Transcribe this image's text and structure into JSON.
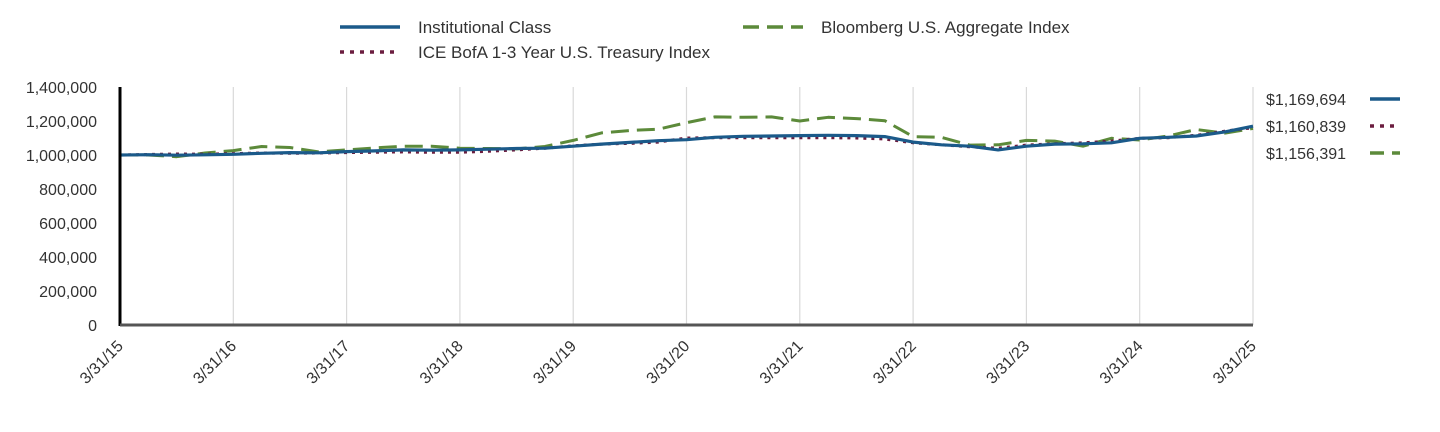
{
  "chart_data": {
    "type": "line",
    "title": "",
    "xlabel": "",
    "ylabel": "",
    "ylim": [
      0,
      1400000
    ],
    "y_ticks": [
      0,
      200000,
      400000,
      600000,
      800000,
      1000000,
      1200000,
      1400000
    ],
    "y_tick_labels": [
      "0",
      "200,000",
      "400,000",
      "600,000",
      "800,000",
      "1,000,000",
      "1,200,000",
      "1,400,000"
    ],
    "x_tick_labels": [
      "3/31/15",
      "3/31/16",
      "3/31/17",
      "3/31/18",
      "3/31/19",
      "3/31/20",
      "3/31/21",
      "3/31/22",
      "3/31/23",
      "3/31/24",
      "3/31/25"
    ],
    "x_range": [
      2015.25,
      2025.25
    ],
    "grid": "vertical",
    "legend_position": "top",
    "x": [
      2015.25,
      2015.5,
      2015.75,
      2016.0,
      2016.25,
      2016.5,
      2016.75,
      2017.0,
      2017.25,
      2017.5,
      2017.75,
      2018.0,
      2018.25,
      2018.5,
      2018.75,
      2019.0,
      2019.25,
      2019.5,
      2019.75,
      2020.0,
      2020.25,
      2020.5,
      2020.75,
      2021.0,
      2021.25,
      2021.5,
      2021.75,
      2022.0,
      2022.25,
      2022.5,
      2022.75,
      2023.0,
      2023.25,
      2023.5,
      2023.75,
      2024.0,
      2024.25,
      2024.5,
      2024.75,
      2025.0,
      2025.25
    ],
    "series": [
      {
        "name": "Institutional Class",
        "color": "#1b5a8a",
        "style": "solid",
        "end_label": "$1,169,694",
        "values": [
          1000000,
          1002000,
          999000,
          1001000,
          1004000,
          1010000,
          1014000,
          1013000,
          1020000,
          1024000,
          1030000,
          1028000,
          1030000,
          1034000,
          1038000,
          1040000,
          1052000,
          1064000,
          1074000,
          1084000,
          1090000,
          1104000,
          1110000,
          1112000,
          1114000,
          1116000,
          1114000,
          1108000,
          1076000,
          1060000,
          1052000,
          1030000,
          1052000,
          1064000,
          1066000,
          1072000,
          1098000,
          1104000,
          1112000,
          1136000,
          1169694
        ]
      },
      {
        "name": "ICE BofA 1-3 Year U.S. Treasury Index",
        "color": "#6b1d3f",
        "style": "dotted",
        "end_label": "$1,160,839",
        "values": [
          1000000,
          1003000,
          1006000,
          1005000,
          1008000,
          1012000,
          1010000,
          1012000,
          1014000,
          1016000,
          1018000,
          1016000,
          1016000,
          1022000,
          1030000,
          1040000,
          1054000,
          1064000,
          1068000,
          1076000,
          1100000,
          1102000,
          1102000,
          1102000,
          1102000,
          1102000,
          1100000,
          1094000,
          1072000,
          1060000,
          1048000,
          1040000,
          1058000,
          1066000,
          1072000,
          1082000,
          1098000,
          1102000,
          1116000,
          1140000,
          1160839
        ]
      },
      {
        "name": "Bloomberg U.S. Aggregate Index",
        "color": "#5c8a3a",
        "style": "dashed",
        "end_label": "$1,156,391",
        "values": [
          1000000,
          1000000,
          990000,
          1012000,
          1026000,
          1050000,
          1044000,
          1018000,
          1030000,
          1042000,
          1052000,
          1052000,
          1040000,
          1038000,
          1036000,
          1050000,
          1086000,
          1130000,
          1144000,
          1152000,
          1190000,
          1224000,
          1222000,
          1224000,
          1200000,
          1222000,
          1214000,
          1202000,
          1108000,
          1104000,
          1058000,
          1060000,
          1086000,
          1082000,
          1052000,
          1098000,
          1088000,
          1112000,
          1150000,
          1128000,
          1156391
        ]
      }
    ]
  }
}
